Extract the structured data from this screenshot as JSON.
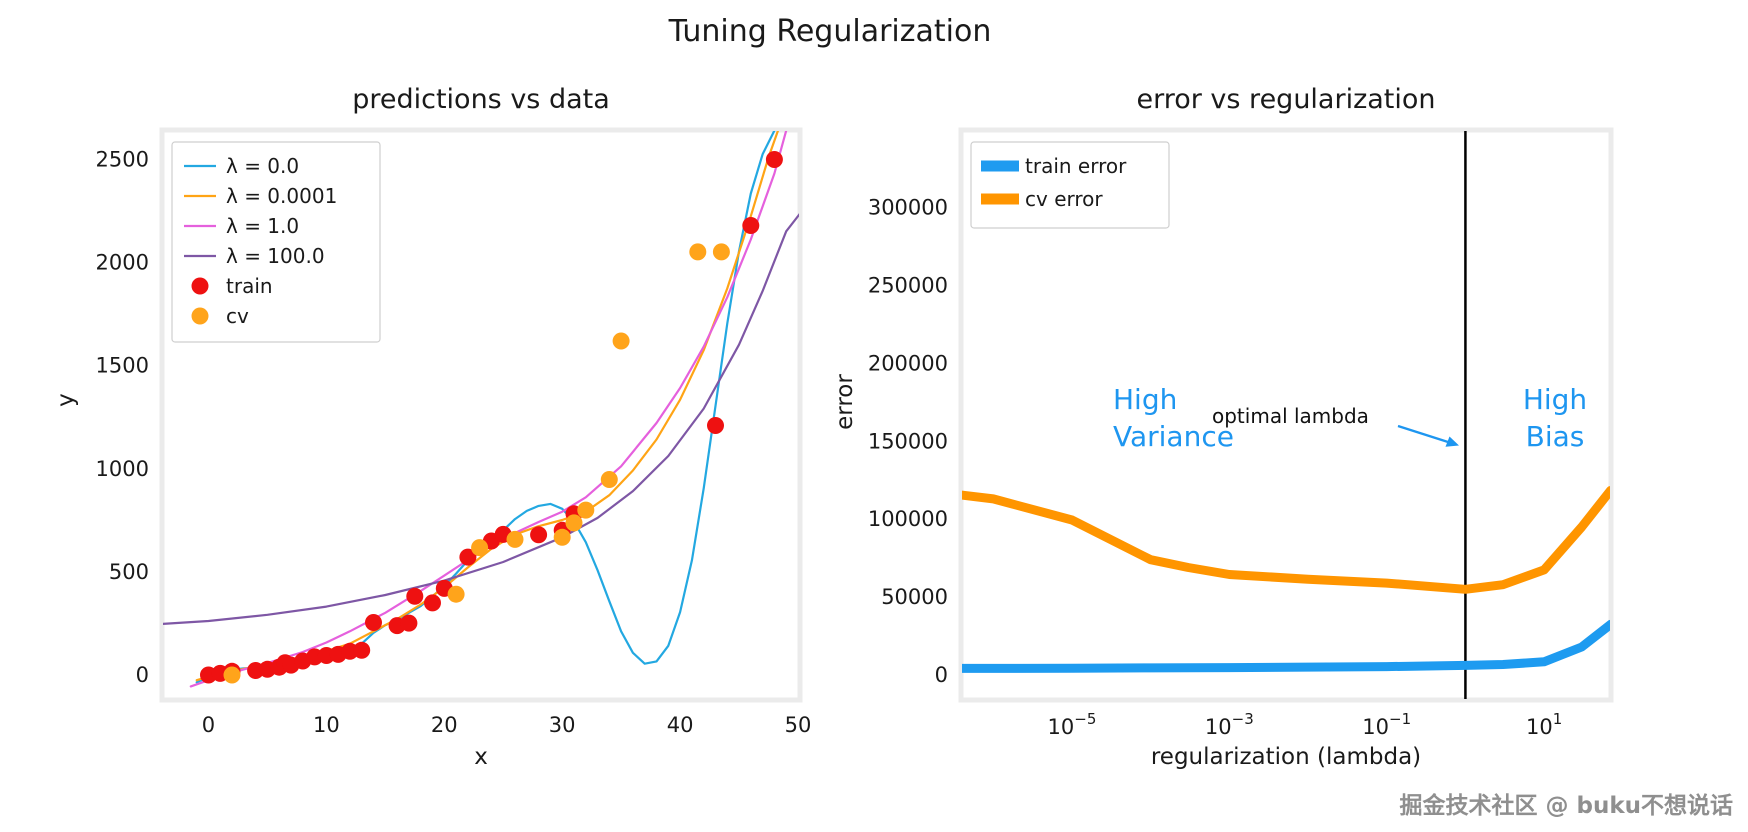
{
  "figure": {
    "title": "Tuning Regularization"
  },
  "watermark": "掘金技术社区 @ buku不想说话",
  "colors": {
    "lambda_0": "#23a8e1",
    "lambda_0001": "#ffa415",
    "lambda_1": "#e560dd",
    "lambda_100": "#7e57a5",
    "train_scatter": "#ee1111",
    "cv_scatter": "#ffa41b",
    "train_error": "#1e9bf0",
    "cv_error": "#ff9500",
    "annotation_blue": "#1e96f0",
    "vline": "#000000",
    "frame": "#ebebeb"
  },
  "chart_data": [
    {
      "id": "left",
      "type": "line",
      "title": "predictions vs data",
      "xlabel": "x",
      "ylabel": "y",
      "xlim": [
        -3.94,
        50.17
      ],
      "ylim": [
        -121,
        2643
      ],
      "xticks": [
        0,
        10,
        20,
        30,
        40,
        50
      ],
      "yticks": [
        0,
        500,
        1000,
        1500,
        2000,
        2500
      ],
      "legend": {
        "position": "upper left",
        "sample": "line"
      },
      "series": [
        {
          "name": "λ = 0.0",
          "color": "#23a8e1",
          "width": 2.2,
          "points": [
            [
              -1,
              -35
            ],
            [
              0,
              -10
            ],
            [
              1,
              12
            ],
            [
              2,
              26
            ],
            [
              3,
              32
            ],
            [
              4,
              34
            ],
            [
              5,
              48
            ],
            [
              6,
              72
            ],
            [
              7,
              62
            ],
            [
              8,
              72
            ],
            [
              9,
              92
            ],
            [
              10,
              106
            ],
            [
              11,
              112
            ],
            [
              12,
              122
            ],
            [
              13,
              152
            ],
            [
              14,
              205
            ],
            [
              15,
              242
            ],
            [
              16,
              268
            ],
            [
              17,
              302
            ],
            [
              18,
              335
            ],
            [
              19,
              382
            ],
            [
              20,
              432
            ],
            [
              21,
              492
            ],
            [
              22,
              556
            ],
            [
              23,
              612
            ],
            [
              24,
              658
            ],
            [
              25,
              702
            ],
            [
              26,
              756
            ],
            [
              27,
              796
            ],
            [
              28,
              820
            ],
            [
              29,
              830
            ],
            [
              30,
              806
            ],
            [
              31,
              744
            ],
            [
              32,
              644
            ],
            [
              33,
              508
            ],
            [
              34,
              358
            ],
            [
              35,
              212
            ],
            [
              36,
              108
            ],
            [
              37,
              55
            ],
            [
              38,
              66
            ],
            [
              39,
              142
            ],
            [
              40,
              305
            ],
            [
              41,
              556
            ],
            [
              42,
              905
            ],
            [
              43,
              1305
            ],
            [
              44,
              1705
            ],
            [
              45,
              2055
            ],
            [
              46,
              2335
            ],
            [
              47,
              2525
            ],
            [
              48,
              2640
            ]
          ]
        },
        {
          "name": "λ = 0.0001",
          "color": "#ffa415",
          "width": 2.2,
          "points": [
            [
              -1,
              -25
            ],
            [
              0,
              -8
            ],
            [
              2,
              18
            ],
            [
              4,
              42
            ],
            [
              6,
              66
            ],
            [
              8,
              88
            ],
            [
              10,
              116
            ],
            [
              12,
              152
            ],
            [
              14,
              212
            ],
            [
              16,
              272
            ],
            [
              18,
              342
            ],
            [
              20,
              425
            ],
            [
              22,
              522
            ],
            [
              24,
              612
            ],
            [
              26,
              682
            ],
            [
              28,
              722
            ],
            [
              30,
              752
            ],
            [
              32,
              792
            ],
            [
              34,
              872
            ],
            [
              36,
              992
            ],
            [
              38,
              1142
            ],
            [
              40,
              1335
            ],
            [
              42,
              1575
            ],
            [
              44,
              1875
            ],
            [
              46,
              2225
            ],
            [
              47.5,
              2510
            ],
            [
              48.3,
              2640
            ]
          ]
        },
        {
          "name": "λ = 1.0",
          "color": "#e560dd",
          "width": 2.2,
          "points": [
            [
              -1.5,
              -55
            ],
            [
              0,
              -25
            ],
            [
              2,
              12
            ],
            [
              5,
              58
            ],
            [
              8,
              112
            ],
            [
              10,
              158
            ],
            [
              12,
              212
            ],
            [
              15,
              302
            ],
            [
              18,
              408
            ],
            [
              20,
              482
            ],
            [
              22,
              558
            ],
            [
              25,
              662
            ],
            [
              28,
              742
            ],
            [
              30,
              792
            ],
            [
              32,
              862
            ],
            [
              35,
              1012
            ],
            [
              38,
              1222
            ],
            [
              40,
              1392
            ],
            [
              42,
              1592
            ],
            [
              44,
              1832
            ],
            [
              46,
              2112
            ],
            [
              48,
              2432
            ],
            [
              49,
              2640
            ]
          ]
        },
        {
          "name": "λ = 100.0",
          "color": "#7e57a5",
          "width": 2.2,
          "points": [
            [
              -3.9,
              248
            ],
            [
              0,
              262
            ],
            [
              5,
              292
            ],
            [
              10,
              332
            ],
            [
              15,
              388
            ],
            [
              20,
              458
            ],
            [
              25,
              548
            ],
            [
              30,
              668
            ],
            [
              33,
              762
            ],
            [
              36,
              892
            ],
            [
              39,
              1062
            ],
            [
              42,
              1292
            ],
            [
              45,
              1602
            ],
            [
              47,
              1862
            ],
            [
              49,
              2152
            ],
            [
              50.2,
              2240
            ]
          ]
        }
      ],
      "scatter": [
        {
          "name": "train",
          "color": "#ee1111",
          "points": [
            [
              0,
              0
            ],
            [
              1,
              8
            ],
            [
              2,
              18
            ],
            [
              4,
              22
            ],
            [
              5,
              28
            ],
            [
              6,
              38
            ],
            [
              6.5,
              60
            ],
            [
              7,
              48
            ],
            [
              8,
              68
            ],
            [
              9,
              88
            ],
            [
              10,
              95
            ],
            [
              11,
              100
            ],
            [
              12,
              115
            ],
            [
              13,
              120
            ],
            [
              14,
              255
            ],
            [
              16,
              240
            ],
            [
              17,
              252
            ],
            [
              17.5,
              382
            ],
            [
              19,
              350
            ],
            [
              20,
              420
            ],
            [
              22,
              572
            ],
            [
              24,
              650
            ],
            [
              25,
              682
            ],
            [
              28,
              680
            ],
            [
              30,
              702
            ],
            [
              31,
              782
            ],
            [
              43,
              1210
            ],
            [
              46,
              2180
            ],
            [
              48,
              2500
            ]
          ]
        },
        {
          "name": "cv",
          "color": "#ffa41b",
          "points": [
            [
              2,
              0
            ],
            [
              21,
              392
            ],
            [
              23,
              618
            ],
            [
              26,
              658
            ],
            [
              30,
              668
            ],
            [
              31,
              738
            ],
            [
              32,
              800
            ],
            [
              34,
              948
            ],
            [
              35,
              1620
            ],
            [
              41.5,
              2052
            ],
            [
              43.5,
              2052
            ]
          ]
        }
      ]
    },
    {
      "id": "right",
      "type": "line",
      "title": "error vs regularization",
      "xlabel": "regularization (lambda)",
      "ylabel": "error",
      "xscale": "log",
      "xlim_log": [
        -6.41,
        1.85
      ],
      "ylim": [
        -16000,
        349700
      ],
      "xticks_log": [
        -5,
        -3,
        -1,
        1
      ],
      "yticks": [
        0,
        50000,
        100000,
        150000,
        200000,
        250000,
        300000
      ],
      "legend": {
        "position": "upper left",
        "sample": "thick"
      },
      "vline": {
        "x": 1,
        "color": "#000000"
      },
      "series": [
        {
          "name": "train error",
          "color": "#1e9bf0",
          "width": 9,
          "points": [
            [
              3.9e-07,
              4300
            ],
            [
              1e-06,
              4300
            ],
            [
              1e-05,
              4400
            ],
            [
              0.0001,
              4600
            ],
            [
              0.001,
              4800
            ],
            [
              0.01,
              5100
            ],
            [
              0.1,
              5400
            ],
            [
              1,
              6200
            ],
            [
              3,
              6800
            ],
            [
              10,
              8500
            ],
            [
              30,
              18000
            ],
            [
              70,
              32500
            ]
          ]
        },
        {
          "name": "cv error",
          "color": "#ff9500",
          "width": 9,
          "points": [
            [
              3.9e-07,
              115500
            ],
            [
              1e-06,
              113000
            ],
            [
              1e-05,
              99500
            ],
            [
              0.0001,
              74000
            ],
            [
              0.0003,
              69000
            ],
            [
              0.001,
              64500
            ],
            [
              0.01,
              61500
            ],
            [
              0.1,
              59000
            ],
            [
              1,
              55000
            ],
            [
              3,
              58000
            ],
            [
              10,
              67500
            ],
            [
              30,
              95000
            ],
            [
              70,
              118500
            ]
          ]
        }
      ],
      "annotations": {
        "high_variance": "High\nVariance",
        "high_bias": "High\nBias",
        "optimal_lambda": "optimal lambda"
      }
    }
  ]
}
